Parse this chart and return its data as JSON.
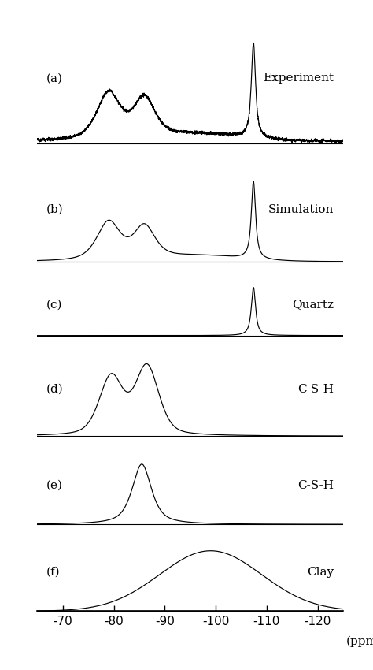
{
  "xlim": [
    -65,
    -125
  ],
  "xticks": [
    -70,
    -80,
    -90,
    -100,
    -110,
    -120
  ],
  "xlabel": "(ppm)",
  "panels": [
    {
      "label": "(a)",
      "annotation": "Experiment"
    },
    {
      "label": "(b)",
      "annotation": "Simulation"
    },
    {
      "label": "(c)",
      "annotation": "Quartz"
    },
    {
      "label": "(d)",
      "annotation": "C-S-H"
    },
    {
      "label": "(e)",
      "annotation": "C-S-H"
    },
    {
      "label": "(f)",
      "annotation": "Clay"
    }
  ],
  "background_color": "#ffffff",
  "line_color": "#000000",
  "font_size": 11,
  "height_ratios": [
    2.5,
    2.0,
    1.2,
    1.8,
    1.5,
    1.5
  ]
}
